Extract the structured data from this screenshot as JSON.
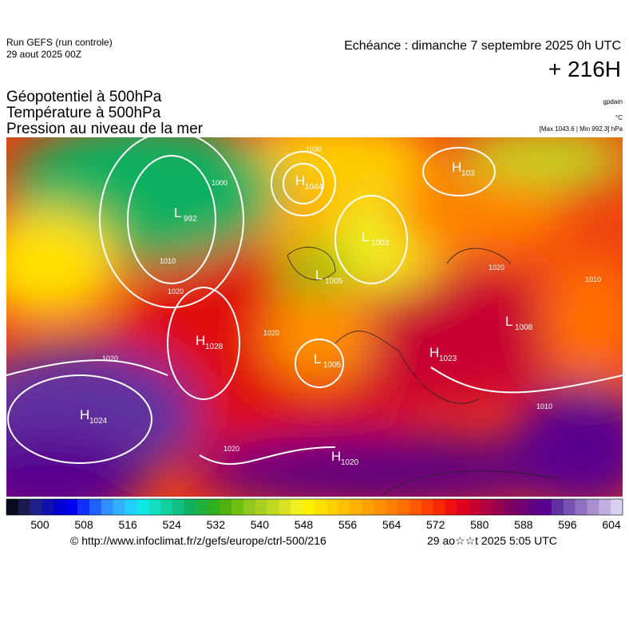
{
  "header": {
    "run": "Run GEFS (run controle)",
    "run_date": "29 aout 2025 00Z",
    "valid": "Echéance : dimanche 7 septembre 2025 0h UTC",
    "lead": "+ 216H"
  },
  "fields": [
    "Géopotentiel à 500hPa",
    "Température à 500hPa",
    "Pression au niveau de la mer"
  ],
  "units": {
    "geopotential": "gpdam",
    "temperature": "°C",
    "pressure": "[Max 1043.6 | Min 992.3] hPa"
  },
  "centers": [
    {
      "letter": "H",
      "value": "1044"
    },
    {
      "letter": "L",
      "value": "992"
    },
    {
      "letter": "H",
      "value": "103"
    },
    {
      "letter": "L",
      "value": "1003"
    },
    {
      "letter": "L",
      "value": "1005"
    },
    {
      "letter": "H",
      "value": "1028"
    },
    {
      "letter": "L",
      "value": "1005"
    },
    {
      "letter": "H",
      "value": "1023"
    },
    {
      "letter": "L",
      "value": "1008"
    },
    {
      "letter": "H",
      "value": "1024"
    },
    {
      "letter": "H",
      "value": "1020"
    }
  ],
  "contour_labels": [
    "1000",
    "1010",
    "1020",
    "1020",
    "1020",
    "1020",
    "1010",
    "1030",
    "1020",
    "1010"
  ],
  "colorbar": {
    "ticks": [
      500,
      508,
      516,
      524,
      532,
      540,
      548,
      556,
      564,
      572,
      580,
      588,
      596,
      604
    ],
    "colors": [
      "#0a0a1e",
      "#1a1a50",
      "#20208a",
      "#1010b0",
      "#0000d0",
      "#0000f0",
      "#1030ff",
      "#2060ff",
      "#3090ff",
      "#30b0ff",
      "#20d0ff",
      "#10e8e8",
      "#10e0c0",
      "#10d0a0",
      "#10c080",
      "#10b060",
      "#20b040",
      "#30b020",
      "#50b010",
      "#70c010",
      "#90c820",
      "#a8d020",
      "#c0d820",
      "#d8e020",
      "#f0f020",
      "#fff000",
      "#ffe000",
      "#ffd000",
      "#ffc000",
      "#ffb000",
      "#ffa000",
      "#ff9000",
      "#ff8000",
      "#ff7000",
      "#ff5800",
      "#ff4000",
      "#f82800",
      "#f01010",
      "#e00020",
      "#c80030",
      "#b00040",
      "#980050",
      "#800060",
      "#700070",
      "#600080",
      "#580090",
      "#6030a0",
      "#7850b0",
      "#9070c0",
      "#a890d0",
      "#c0b0e0",
      "#d8d0f0"
    ]
  },
  "footer": {
    "url": "© http://www.infoclimat.fr/z/gefs/europe/ctrl-500/216",
    "generated": "29 ao☆☆t 2025  5:05 UTC"
  }
}
